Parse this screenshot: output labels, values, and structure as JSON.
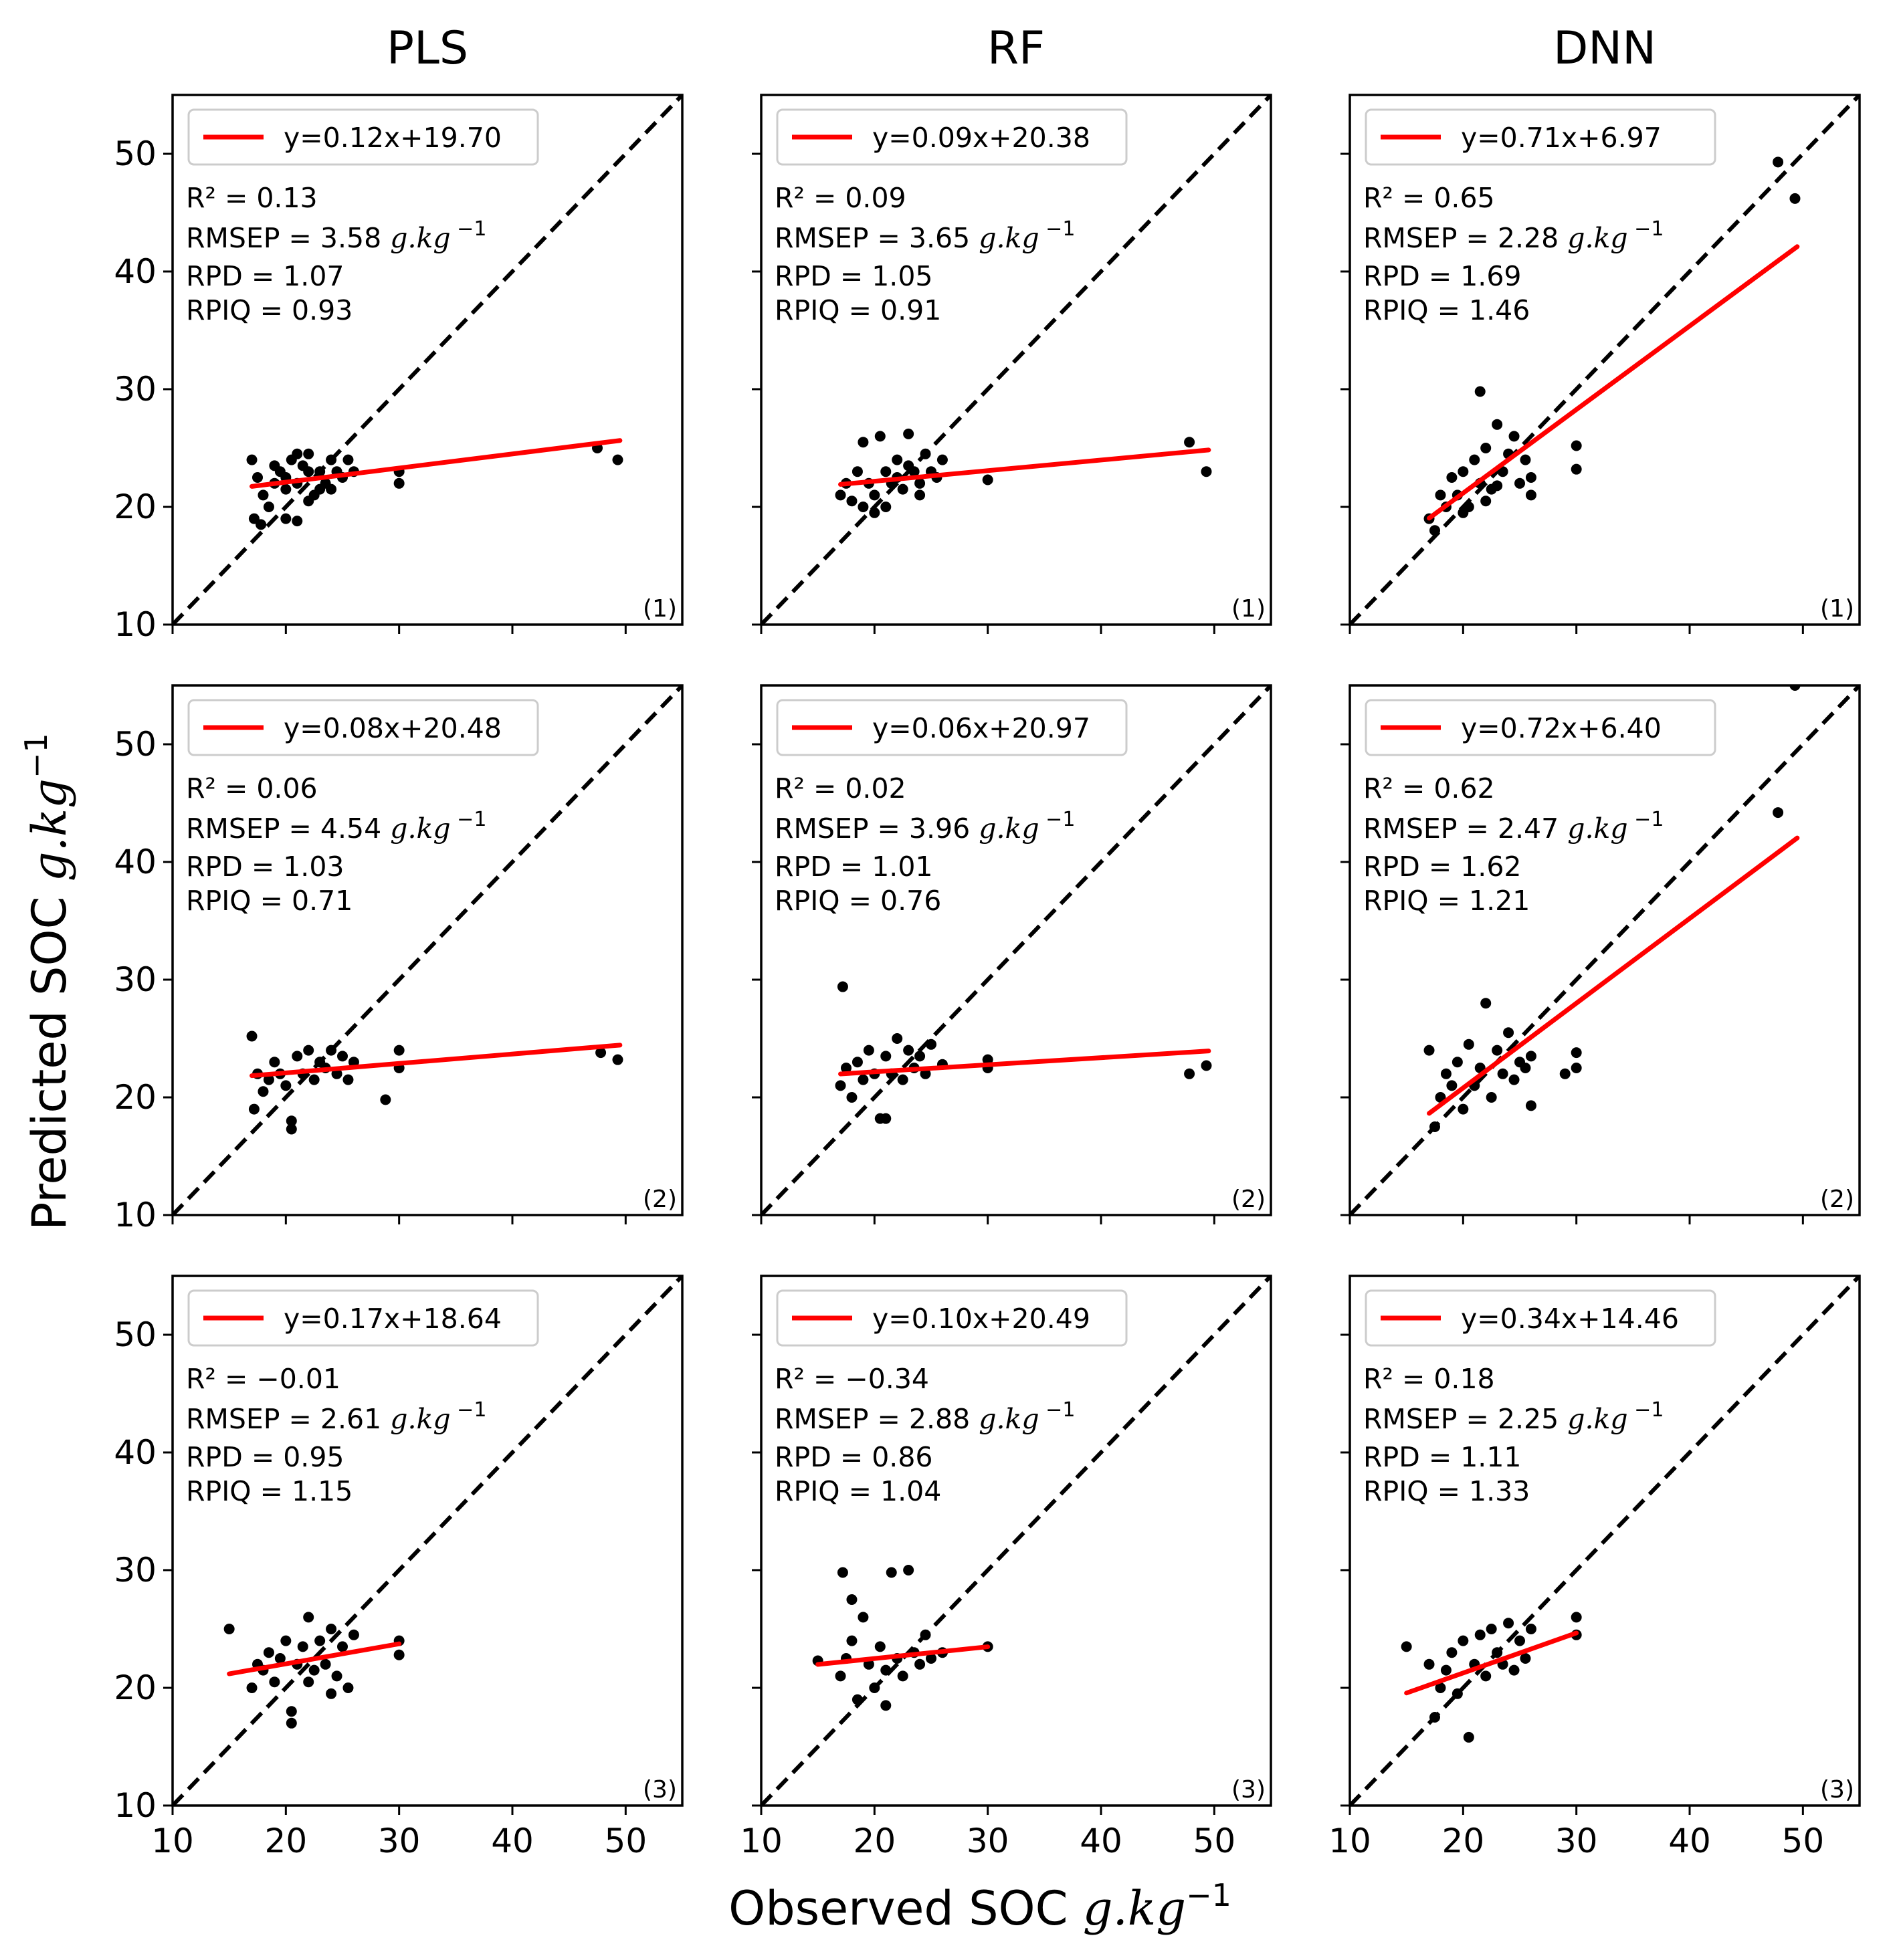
{
  "figure": {
    "xlabel_text": "Observed SOC ",
    "xlabel_unit": "g.kg",
    "ylabel_text": "Predicted SOC ",
    "ylabel_unit": "g.kg",
    "unit_exp": "−1",
    "columns": [
      "PLS",
      "RF",
      "DNN"
    ]
  },
  "chart_data": [
    {
      "type": "scatter",
      "row": 1,
      "col": "PLS",
      "title": "PLS",
      "tag": "(1)",
      "xlim": [
        10,
        55
      ],
      "ylim": [
        10,
        55
      ],
      "xticks": [
        10,
        20,
        30,
        40,
        50
      ],
      "yticks": [
        10,
        20,
        30,
        40,
        50
      ],
      "legend": "y=0.12x+19.70",
      "fit": {
        "slope": 0.12,
        "intercept": 19.7,
        "x_range": [
          17,
          49.5
        ]
      },
      "stats": {
        "r2": "R² = 0.13",
        "rmsep": "RMSEP = 3.58",
        "rpd": "RPD = 1.07",
        "rpiq": "RPIQ = 0.93"
      },
      "points": [
        [
          17,
          24
        ],
        [
          17.5,
          22.5
        ],
        [
          18,
          21
        ],
        [
          17.2,
          19
        ],
        [
          17.8,
          18.5
        ],
        [
          18.5,
          20
        ],
        [
          19,
          22
        ],
        [
          19.5,
          23
        ],
        [
          20,
          21.5
        ],
        [
          20.5,
          24
        ],
        [
          21,
          22
        ],
        [
          21.5,
          23.5
        ],
        [
          22,
          24.5
        ],
        [
          22.5,
          21
        ],
        [
          23,
          23
        ],
        [
          23.5,
          22
        ],
        [
          24,
          24
        ],
        [
          24.5,
          23
        ],
        [
          25,
          22.5
        ],
        [
          25.5,
          24
        ],
        [
          26,
          23
        ],
        [
          20,
          19
        ],
        [
          21,
          18.8
        ],
        [
          22,
          20.5
        ],
        [
          23,
          21.5
        ],
        [
          19,
          23.5
        ],
        [
          20,
          22.5
        ],
        [
          21,
          24.5
        ],
        [
          22,
          23
        ],
        [
          24,
          21.5
        ],
        [
          30,
          22
        ],
        [
          30,
          23
        ],
        [
          47.5,
          25
        ],
        [
          49.3,
          24
        ]
      ]
    },
    {
      "type": "scatter",
      "row": 1,
      "col": "RF",
      "title": "RF",
      "tag": "(1)",
      "xlim": [
        10,
        55
      ],
      "ylim": [
        10,
        55
      ],
      "xticks": [
        10,
        20,
        30,
        40,
        50
      ],
      "yticks": [
        10,
        20,
        30,
        40,
        50
      ],
      "legend": "y=0.09x+20.38",
      "fit": {
        "slope": 0.09,
        "intercept": 20.38,
        "x_range": [
          17,
          49.5
        ]
      },
      "stats": {
        "r2": "R² = 0.09",
        "rmsep": "RMSEP = 3.65",
        "rpd": "RPD = 1.05",
        "rpiq": "RPIQ = 0.91"
      },
      "points": [
        [
          17,
          21
        ],
        [
          17.5,
          22
        ],
        [
          18,
          20.5
        ],
        [
          18.5,
          23
        ],
        [
          19,
          25.5
        ],
        [
          19.5,
          22
        ],
        [
          20,
          21
        ],
        [
          20.5,
          26
        ],
        [
          21,
          23
        ],
        [
          21.5,
          22
        ],
        [
          22,
          24
        ],
        [
          22.5,
          21.5
        ],
        [
          23,
          26.2
        ],
        [
          23.5,
          23
        ],
        [
          24,
          22
        ],
        [
          24.5,
          24.5
        ],
        [
          25,
          23
        ],
        [
          25.5,
          22.5
        ],
        [
          26,
          24
        ],
        [
          19,
          20
        ],
        [
          20,
          19.5
        ],
        [
          21,
          20
        ],
        [
          22,
          22.5
        ],
        [
          23,
          23.5
        ],
        [
          24,
          21
        ],
        [
          30,
          22.3
        ],
        [
          47.8,
          25.5
        ],
        [
          49.3,
          23
        ]
      ]
    },
    {
      "type": "scatter",
      "row": 1,
      "col": "DNN",
      "title": "DNN",
      "tag": "(1)",
      "xlim": [
        10,
        55
      ],
      "ylim": [
        10,
        55
      ],
      "xticks": [
        10,
        20,
        30,
        40,
        50
      ],
      "yticks": [
        10,
        20,
        30,
        40,
        50
      ],
      "legend": "y=0.71x+6.97",
      "fit": {
        "slope": 0.71,
        "intercept": 6.97,
        "x_range": [
          17,
          49.5
        ]
      },
      "stats": {
        "r2": "R² = 0.65",
        "rmsep": "RMSEP = 2.28",
        "rpd": "RPD = 1.69",
        "rpiq": "RPIQ = 1.46"
      },
      "points": [
        [
          17,
          19
        ],
        [
          17.5,
          18
        ],
        [
          18,
          21
        ],
        [
          18.5,
          20
        ],
        [
          19,
          22.5
        ],
        [
          19.5,
          21
        ],
        [
          20,
          23
        ],
        [
          20.5,
          20
        ],
        [
          21,
          24
        ],
        [
          21.5,
          22
        ],
        [
          22,
          25
        ],
        [
          22.5,
          21.5
        ],
        [
          23,
          27
        ],
        [
          23.5,
          23
        ],
        [
          24,
          24.5
        ],
        [
          24.5,
          26
        ],
        [
          25,
          22
        ],
        [
          25.5,
          24
        ],
        [
          26,
          22.5
        ],
        [
          26,
          21
        ],
        [
          21.5,
          29.8
        ],
        [
          20,
          19.5
        ],
        [
          22,
          20.5
        ],
        [
          23,
          21.8
        ],
        [
          30,
          25.2
        ],
        [
          30,
          23.2
        ],
        [
          47.8,
          49.3
        ],
        [
          49.3,
          46.2
        ]
      ]
    },
    {
      "type": "scatter",
      "row": 2,
      "col": "PLS",
      "title": "PLS",
      "tag": "(2)",
      "xlim": [
        10,
        55
      ],
      "ylim": [
        10,
        55
      ],
      "xticks": [
        10,
        20,
        30,
        40,
        50
      ],
      "yticks": [
        10,
        20,
        30,
        40,
        50
      ],
      "legend": "y=0.08x+20.48",
      "fit": {
        "slope": 0.08,
        "intercept": 20.48,
        "x_range": [
          17,
          49.5
        ]
      },
      "stats": {
        "r2": "R² = 0.06",
        "rmsep": "RMSEP = 4.54",
        "rpd": "RPD = 1.03",
        "rpiq": "RPIQ = 0.71"
      },
      "points": [
        [
          17,
          25.2
        ],
        [
          17.5,
          22
        ],
        [
          18,
          20.5
        ],
        [
          17.2,
          19
        ],
        [
          18.5,
          21.5
        ],
        [
          19,
          23
        ],
        [
          19.5,
          22
        ],
        [
          20,
          21
        ],
        [
          20.5,
          17.3
        ],
        [
          20.5,
          18
        ],
        [
          21,
          23.5
        ],
        [
          21.5,
          22
        ],
        [
          22,
          24
        ],
        [
          22.5,
          21.5
        ],
        [
          23,
          23
        ],
        [
          23.5,
          22.5
        ],
        [
          24,
          24
        ],
        [
          24.5,
          22
        ],
        [
          25,
          23.5
        ],
        [
          25.5,
          21.5
        ],
        [
          26,
          23
        ],
        [
          28.8,
          19.8
        ],
        [
          30,
          22.5
        ],
        [
          30,
          24
        ],
        [
          47.8,
          23.8
        ],
        [
          49.3,
          23.2
        ]
      ]
    },
    {
      "type": "scatter",
      "row": 2,
      "col": "RF",
      "title": "RF",
      "tag": "(2)",
      "xlim": [
        10,
        55
      ],
      "ylim": [
        10,
        55
      ],
      "xticks": [
        10,
        20,
        30,
        40,
        50
      ],
      "yticks": [
        10,
        20,
        30,
        40,
        50
      ],
      "legend": "y=0.06x+20.97",
      "fit": {
        "slope": 0.06,
        "intercept": 20.97,
        "x_range": [
          17,
          49.5
        ]
      },
      "stats": {
        "r2": "R² = 0.02",
        "rmsep": "RMSEP = 3.96",
        "rpd": "RPD = 1.01",
        "rpiq": "RPIQ = 0.76"
      },
      "points": [
        [
          17,
          21
        ],
        [
          17.2,
          29.4
        ],
        [
          17.5,
          22.5
        ],
        [
          18,
          20
        ],
        [
          18.5,
          23
        ],
        [
          19,
          21.5
        ],
        [
          19.5,
          24
        ],
        [
          20,
          22
        ],
        [
          20.5,
          18.2
        ],
        [
          21,
          18.2
        ],
        [
          21,
          23.5
        ],
        [
          21.5,
          22
        ],
        [
          22,
          25
        ],
        [
          22.5,
          21.5
        ],
        [
          23,
          24
        ],
        [
          23.5,
          22.5
        ],
        [
          24,
          23.5
        ],
        [
          24.5,
          22
        ],
        [
          25,
          24.5
        ],
        [
          26,
          22.8
        ],
        [
          30,
          22.5
        ],
        [
          30,
          23.2
        ],
        [
          47.8,
          22
        ],
        [
          49.3,
          22.7
        ]
      ]
    },
    {
      "type": "scatter",
      "row": 2,
      "col": "DNN",
      "title": "DNN",
      "tag": "(2)",
      "xlim": [
        10,
        55
      ],
      "ylim": [
        10,
        55
      ],
      "xticks": [
        10,
        20,
        30,
        40,
        50
      ],
      "yticks": [
        10,
        20,
        30,
        40,
        50
      ],
      "legend": "y=0.72x+6.40",
      "fit": {
        "slope": 0.72,
        "intercept": 6.4,
        "x_range": [
          17,
          49.5
        ]
      },
      "stats": {
        "r2": "R² = 0.62",
        "rmsep": "RMSEP = 2.47",
        "rpd": "RPD = 1.62",
        "rpiq": "RPIQ = 1.21"
      },
      "points": [
        [
          17,
          24
        ],
        [
          17.5,
          17.5
        ],
        [
          18,
          20
        ],
        [
          18.5,
          22
        ],
        [
          19,
          21
        ],
        [
          19.5,
          23
        ],
        [
          20,
          19
        ],
        [
          20.5,
          24.5
        ],
        [
          21,
          21
        ],
        [
          21.5,
          22.5
        ],
        [
          22,
          28
        ],
        [
          22.5,
          20
        ],
        [
          23,
          24
        ],
        [
          23.5,
          22
        ],
        [
          24,
          25.5
        ],
        [
          24.5,
          21.5
        ],
        [
          25,
          23
        ],
        [
          25.5,
          22.5
        ],
        [
          26,
          19.3
        ],
        [
          26,
          23.5
        ],
        [
          29,
          22
        ],
        [
          30,
          22.5
        ],
        [
          30,
          23.8
        ],
        [
          47.8,
          44.2
        ],
        [
          49.3,
          55
        ]
      ]
    },
    {
      "type": "scatter",
      "row": 3,
      "col": "PLS",
      "title": "PLS",
      "tag": "(3)",
      "xlim": [
        10,
        55
      ],
      "ylim": [
        10,
        55
      ],
      "xticks": [
        10,
        20,
        30,
        40,
        50
      ],
      "yticks": [
        10,
        20,
        30,
        40,
        50
      ],
      "legend": "y=0.17x+18.64",
      "fit": {
        "slope": 0.17,
        "intercept": 18.64,
        "x_range": [
          15,
          30
        ]
      },
      "stats": {
        "r2": "R² = −0.01",
        "rmsep": "RMSEP = 2.61",
        "rpd": "RPD = 0.95",
        "rpiq": "RPIQ = 1.15"
      },
      "points": [
        [
          15,
          25
        ],
        [
          17,
          20
        ],
        [
          17.5,
          22
        ],
        [
          18,
          21.5
        ],
        [
          18.5,
          23
        ],
        [
          19,
          20.5
        ],
        [
          19.5,
          22.5
        ],
        [
          20,
          24
        ],
        [
          20.5,
          17
        ],
        [
          20.5,
          18
        ],
        [
          21,
          22
        ],
        [
          21.5,
          23.5
        ],
        [
          22,
          26
        ],
        [
          22.5,
          21.5
        ],
        [
          23,
          24
        ],
        [
          23.5,
          22
        ],
        [
          24,
          25
        ],
        [
          24.5,
          21
        ],
        [
          25,
          23.5
        ],
        [
          25.5,
          20
        ],
        [
          26,
          24.5
        ],
        [
          24,
          19.5
        ],
        [
          22,
          20.5
        ],
        [
          30,
          22.8
        ],
        [
          30,
          24
        ]
      ]
    },
    {
      "type": "scatter",
      "row": 3,
      "col": "RF",
      "title": "RF",
      "tag": "(3)",
      "xlim": [
        10,
        55
      ],
      "ylim": [
        10,
        55
      ],
      "xticks": [
        10,
        20,
        30,
        40,
        50
      ],
      "yticks": [
        10,
        20,
        30,
        40,
        50
      ],
      "legend": "y=0.10x+20.49",
      "fit": {
        "slope": 0.1,
        "intercept": 20.49,
        "x_range": [
          15,
          30
        ]
      },
      "stats": {
        "r2": "R² = −0.34",
        "rmsep": "RMSEP = 2.88",
        "rpd": "RPD = 0.86",
        "rpiq": "RPIQ = 1.04"
      },
      "points": [
        [
          15,
          22.3
        ],
        [
          17,
          21
        ],
        [
          17.2,
          29.8
        ],
        [
          17.5,
          22.5
        ],
        [
          18,
          24
        ],
        [
          18.5,
          19
        ],
        [
          19,
          26
        ],
        [
          19.5,
          22
        ],
        [
          20,
          20
        ],
        [
          20.5,
          23.5
        ],
        [
          21,
          18.5
        ],
        [
          21,
          21.5
        ],
        [
          21.5,
          29.8
        ],
        [
          22,
          22.5
        ],
        [
          22.5,
          21
        ],
        [
          23,
          30
        ],
        [
          23.5,
          23
        ],
        [
          24,
          22
        ],
        [
          24.5,
          24.5
        ],
        [
          25,
          22.5
        ],
        [
          26,
          23
        ],
        [
          30,
          23.5
        ],
        [
          18,
          27.5
        ]
      ]
    },
    {
      "type": "scatter",
      "row": 3,
      "col": "DNN",
      "title": "DNN",
      "tag": "(3)",
      "xlim": [
        10,
        55
      ],
      "ylim": [
        10,
        55
      ],
      "xticks": [
        10,
        20,
        30,
        40,
        50
      ],
      "yticks": [
        10,
        20,
        30,
        40,
        50
      ],
      "legend": "y=0.34x+14.46",
      "fit": {
        "slope": 0.34,
        "intercept": 14.46,
        "x_range": [
          15,
          30
        ]
      },
      "stats": {
        "r2": "R² = 0.18",
        "rmsep": "RMSEP = 2.25",
        "rpd": "RPD = 1.11",
        "rpiq": "RPIQ = 1.33"
      },
      "points": [
        [
          15,
          23.5
        ],
        [
          17,
          22
        ],
        [
          17.5,
          17.5
        ],
        [
          18,
          20
        ],
        [
          18.5,
          21.5
        ],
        [
          19,
          23
        ],
        [
          19.5,
          19.5
        ],
        [
          20,
          24
        ],
        [
          20.5,
          15.8
        ],
        [
          21,
          22
        ],
        [
          21.5,
          24.5
        ],
        [
          22,
          21
        ],
        [
          22.5,
          25
        ],
        [
          23,
          23
        ],
        [
          23.5,
          22
        ],
        [
          24,
          25.5
        ],
        [
          24.5,
          21.5
        ],
        [
          25,
          24
        ],
        [
          25.5,
          22.5
        ],
        [
          26,
          25
        ],
        [
          30,
          24.5
        ],
        [
          30,
          26
        ]
      ]
    }
  ]
}
